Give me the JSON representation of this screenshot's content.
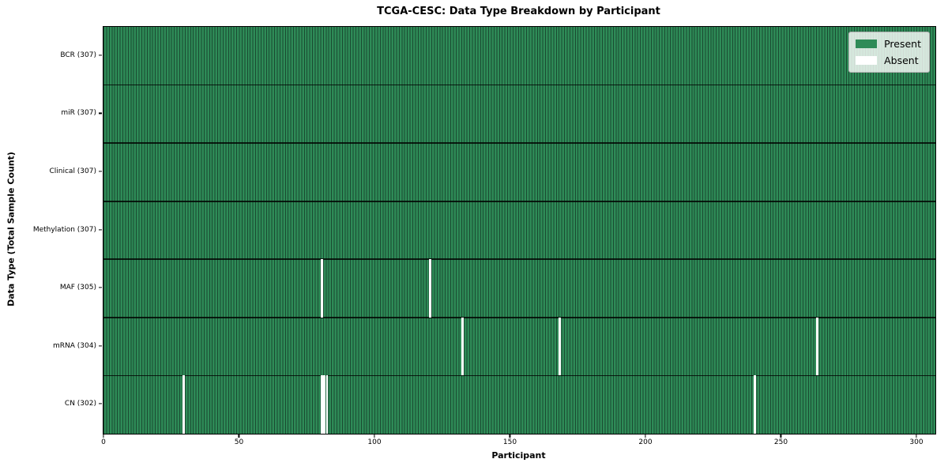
{
  "chart_data": {
    "type": "heatmap",
    "title": "TCGA-CESC: Data Type Breakdown by Participant",
    "xlabel": "Participant",
    "ylabel": "Data Type (Total Sample Count)",
    "xlim": [
      0,
      307
    ],
    "xticks": [
      0,
      50,
      100,
      150,
      200,
      250,
      300
    ],
    "n_participants": 307,
    "grid": "cell-edges-on",
    "legend_position": "upper right",
    "rows": [
      {
        "label": "BCR (307)",
        "data_type": "BCR",
        "present_count": 307,
        "absent_participants": []
      },
      {
        "label": "miR (307)",
        "data_type": "miR",
        "present_count": 307,
        "absent_participants": []
      },
      {
        "label": "Clinical (307)",
        "data_type": "Clinical",
        "present_count": 307,
        "absent_participants": []
      },
      {
        "label": "Methylation (307)",
        "data_type": "Methylation",
        "present_count": 307,
        "absent_participants": []
      },
      {
        "label": "MAF (305)",
        "data_type": "MAF",
        "present_count": 305,
        "absent_participants": [
          80,
          120
        ]
      },
      {
        "label": "mRNA (304)",
        "data_type": "mRNA",
        "present_count": 304,
        "absent_participants": [
          132,
          168,
          263
        ]
      },
      {
        "label": "CN (302)",
        "data_type": "CN",
        "present_count": 302,
        "absent_participants": [
          29,
          80,
          81,
          82,
          240
        ]
      }
    ],
    "legend": {
      "entries": [
        {
          "label": "Present",
          "color": "#2e8b57"
        },
        {
          "label": "Absent",
          "color": "#ffffff"
        }
      ]
    },
    "colors": {
      "present": "#2e8b57",
      "absent": "#ffffff",
      "cell_edge": "#1a4a31",
      "row_divider": "#0a1f14",
      "axis": "#000000",
      "legend_border": "#b0b0b0"
    }
  }
}
